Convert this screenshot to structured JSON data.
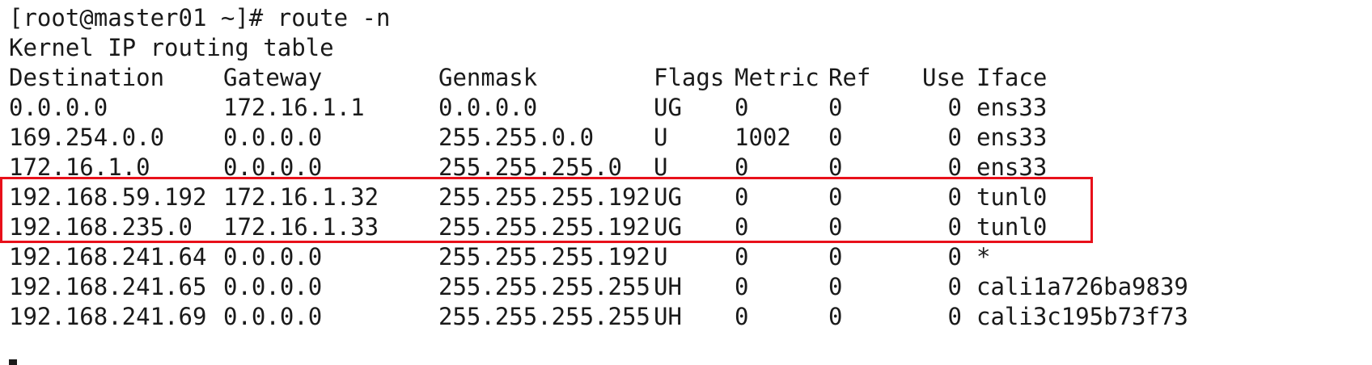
{
  "terminal": {
    "prompt": "[root@master01 ~]# route -n",
    "table_title": "Kernel IP routing table",
    "headers": {
      "destination": "Destination",
      "gateway": "Gateway",
      "genmask": "Genmask",
      "flags": "Flags",
      "metric": "Metric",
      "ref": "Ref",
      "use": "Use",
      "iface": "Iface"
    },
    "rows": [
      {
        "destination": "0.0.0.0",
        "gateway": "172.16.1.1",
        "genmask": "0.0.0.0",
        "flags": "UG",
        "metric": "0",
        "ref": "0",
        "use": "0",
        "iface": "ens33"
      },
      {
        "destination": "169.254.0.0",
        "gateway": "0.0.0.0",
        "genmask": "255.255.0.0",
        "flags": "U",
        "metric": "1002",
        "ref": "0",
        "use": "0",
        "iface": "ens33"
      },
      {
        "destination": "172.16.1.0",
        "gateway": "0.0.0.0",
        "genmask": "255.255.255.0",
        "flags": "U",
        "metric": "0",
        "ref": "0",
        "use": "0",
        "iface": "ens33"
      },
      {
        "destination": "192.168.59.192",
        "gateway": "172.16.1.32",
        "genmask": "255.255.255.192",
        "flags": "UG",
        "metric": "0",
        "ref": "0",
        "use": "0",
        "iface": "tunl0"
      },
      {
        "destination": "192.168.235.0",
        "gateway": "172.16.1.33",
        "genmask": "255.255.255.192",
        "flags": "UG",
        "metric": "0",
        "ref": "0",
        "use": "0",
        "iface": "tunl0"
      },
      {
        "destination": "192.168.241.64",
        "gateway": "0.0.0.0",
        "genmask": "255.255.255.192",
        "flags": "U",
        "metric": "0",
        "ref": "0",
        "use": "0",
        "iface": "*"
      },
      {
        "destination": "192.168.241.65",
        "gateway": "0.0.0.0",
        "genmask": "255.255.255.255",
        "flags": "UH",
        "metric": "0",
        "ref": "0",
        "use": "0",
        "iface": "cali1a726ba9839"
      },
      {
        "destination": "192.168.241.69",
        "gateway": "0.0.0.0",
        "genmask": "255.255.255.255",
        "flags": "UH",
        "metric": "0",
        "ref": "0",
        "use": "0",
        "iface": "cali3c195b73f73"
      }
    ]
  },
  "highlight": {
    "color": "#e8101a"
  },
  "colors": {
    "background": "#ffffff",
    "text": "#1a1a1a"
  }
}
